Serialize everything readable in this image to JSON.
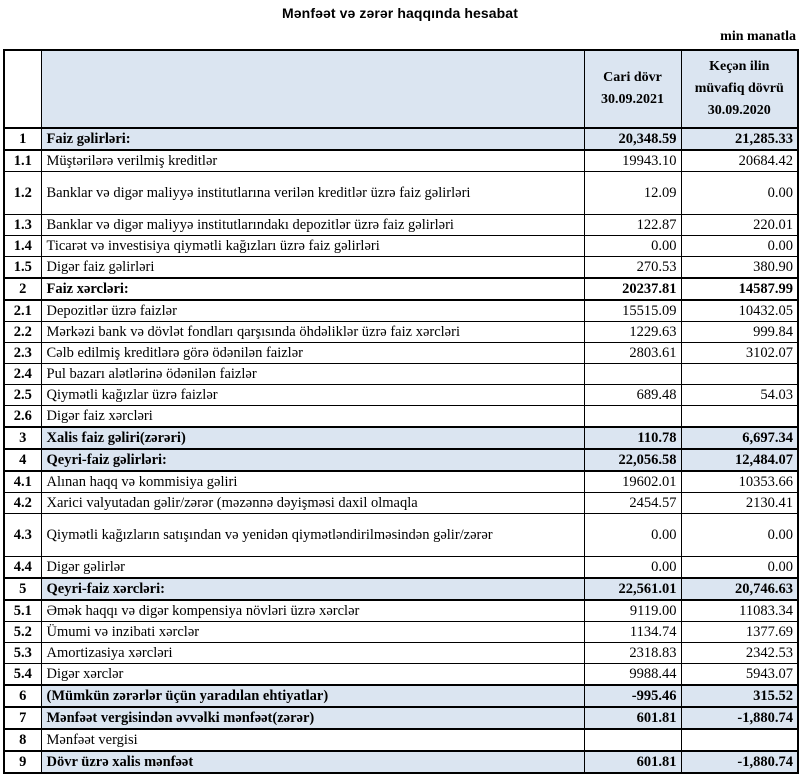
{
  "title": "Mənfəət və zərər haqqında hesabat",
  "unit_note": "min manatla",
  "colors": {
    "header_fill": "#dbe5f1",
    "section_fill": "#dbe5f1",
    "border": "#000000",
    "text": "#000000"
  },
  "table": {
    "headers": {
      "num": "",
      "description": "",
      "current": {
        "lines": [
          "Cari dövr",
          "30.09.2021"
        ]
      },
      "previous": {
        "lines": [
          "Keçən ilin",
          "müvafiq dövrü",
          "30.09.2020"
        ]
      }
    },
    "rows": [
      {
        "num": "1",
        "label": "Faiz gəlirləri:",
        "current": "20,348.59",
        "previous": "21,285.33",
        "style": "section"
      },
      {
        "num": "1.1",
        "label": "Müştərilərə verilmiş kreditlər",
        "current": "19943.10",
        "previous": "20684.42",
        "style": ""
      },
      {
        "num": "1.2",
        "label": "Banklar və digər maliyyə institutlarına verilən kreditlər üzrə faiz gəlirləri",
        "current": "12.09",
        "previous": "0.00",
        "style": "",
        "tall": true
      },
      {
        "num": "1.3",
        "label": "Banklar və digər maliyyə institutlarındakı depozitlər üzrə faiz gəlirləri",
        "current": "122.87",
        "previous": "220.01",
        "style": ""
      },
      {
        "num": "1.4",
        "label": "Ticarət və investisiya qiymətli kağızları üzrə faiz gəlirləri",
        "current": "0.00",
        "previous": "0.00",
        "style": ""
      },
      {
        "num": "1.5",
        "label": "Digər faiz gəlirləri",
        "current": "270.53",
        "previous": "380.90",
        "style": ""
      },
      {
        "num": "2",
        "label": "Faiz xərcləri:",
        "current": "20237.81",
        "previous": "14587.99",
        "style": "section-white"
      },
      {
        "num": "2.1",
        "label": "Depozitlər üzrə faizlər",
        "current": "15515.09",
        "previous": "10432.05",
        "style": ""
      },
      {
        "num": "2.2",
        "label": "Mərkəzi bank və dövlət fondları qarşısında öhdəliklər üzrə faiz xərcləri",
        "current": "1229.63",
        "previous": "999.84",
        "style": ""
      },
      {
        "num": "2.3",
        "label": "Cəlb edilmiş kreditlərə görə ödənilən faizlər",
        "current": "2803.61",
        "previous": "3102.07",
        "style": ""
      },
      {
        "num": "2.4",
        "label": "Pul bazarı alətlərinə ödənilən faizlər",
        "current": "",
        "previous": "",
        "style": ""
      },
      {
        "num": "2.5",
        "label": "Qiymətli kağızlar üzrə faizlər",
        "current": "689.48",
        "previous": "54.03",
        "style": ""
      },
      {
        "num": "2.6",
        "label": "Digər faiz xərcləri",
        "current": "",
        "previous": "",
        "style": ""
      },
      {
        "num": "3",
        "label": "Xalis faiz gəliri(zərəri)",
        "current": "110.78",
        "previous": "6,697.34",
        "style": "section"
      },
      {
        "num": "4",
        "label": "Qeyri-faiz gəlirləri:",
        "current": "22,056.58",
        "previous": "12,484.07",
        "style": "section"
      },
      {
        "num": "4.1",
        "label": "Alınan haqq və kommisiya gəliri",
        "current": "19602.01",
        "previous": "10353.66",
        "style": ""
      },
      {
        "num": "4.2",
        "label": "Xarici valyutadan gəlir/zərər (məzənnə dəyişməsi daxil olmaqla",
        "current": "2454.57",
        "previous": "2130.41",
        "style": ""
      },
      {
        "num": "4.3",
        "label": "Qiymətli kağızların satışından və yenidən qiymətləndirilməsindən gəlir/zərər",
        "current": "0.00",
        "previous": "0.00",
        "style": "",
        "tall": true
      },
      {
        "num": "4.4",
        "label": "Digər gəlirlər",
        "current": "0.00",
        "previous": "0.00",
        "style": ""
      },
      {
        "num": "5",
        "label": "Qeyri-faiz xərcləri:",
        "current": "22,561.01",
        "previous": "20,746.63",
        "style": "section"
      },
      {
        "num": "5.1",
        "label": "Əmək haqqı və digər kompensiya növləri üzrə xərclər",
        "current": "9119.00",
        "previous": "11083.34",
        "style": ""
      },
      {
        "num": "5.2",
        "label": "Ümumi və inzibati xərclər",
        "current": "1134.74",
        "previous": "1377.69",
        "style": ""
      },
      {
        "num": "5.3",
        "label": "Amortizasiya xərcləri",
        "current": "2318.83",
        "previous": "2342.53",
        "style": ""
      },
      {
        "num": "5.4",
        "label": "Digər xərclər",
        "current": "9988.44",
        "previous": "5943.07",
        "style": ""
      },
      {
        "num": "6",
        "label": "(Mümkün zərərlər üçün yaradılan ehtiyatlar)",
        "current": "-995.46",
        "previous": "315.52",
        "style": "section"
      },
      {
        "num": "7",
        "label": "Mənfəət vergisindən əvvəlki mənfəət(zərər)",
        "current": "601.81",
        "previous": "-1,880.74",
        "style": "section"
      },
      {
        "num": "8",
        "label": "Mənfəət vergisi",
        "current": "",
        "previous": "",
        "style": ""
      },
      {
        "num": "9",
        "label": "Dövr üzrə xalis mənfəət",
        "current": "601.81",
        "previous": "-1,880.74",
        "style": "section"
      }
    ]
  }
}
